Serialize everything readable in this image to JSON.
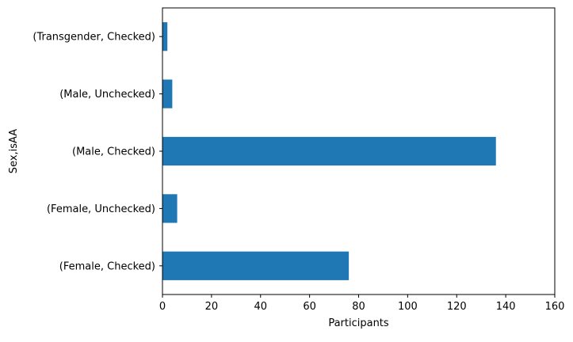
{
  "chart_data": {
    "type": "bar",
    "orientation": "horizontal",
    "categories": [
      "(Female, Checked)",
      "(Female, Unchecked)",
      "(Male, Checked)",
      "(Male, Unchecked)",
      "(Transgender, Checked)"
    ],
    "values": [
      76,
      6,
      136,
      4,
      2
    ],
    "xlabel": "Participants",
    "ylabel": "Sex,isAA",
    "xlim": [
      0,
      160
    ],
    "xticks": [
      "0",
      "20",
      "40",
      "60",
      "80",
      "100",
      "120",
      "140",
      "160"
    ],
    "bar_color": "#1f77b4",
    "grid": false,
    "legend": "none"
  }
}
